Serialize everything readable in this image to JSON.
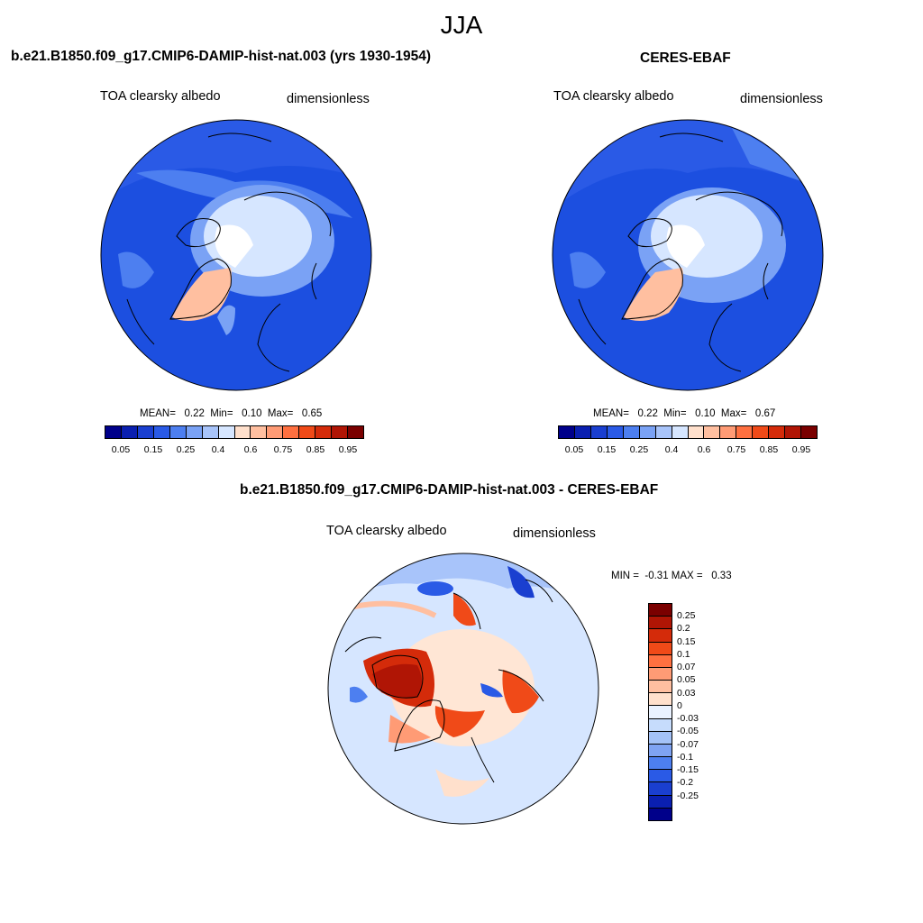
{
  "title": "JJA",
  "panels": [
    {
      "title": "b.e21.B1850.f09_g17.CMIP6-DAMIP-hist-nat.003 (yrs 1930-1954)",
      "left_label": "TOA clearsky albedo",
      "right_label": "dimensionless",
      "stats": "MEAN=   0.22  Min=   0.10  Max=   0.65",
      "mean": 0.22,
      "min": 0.1,
      "max": 0.65
    },
    {
      "title": "CERES-EBAF",
      "left_label": "TOA clearsky albedo",
      "right_label": "dimensionless",
      "stats": "MEAN=   0.22  Min=   0.10  Max=   0.67",
      "mean": 0.22,
      "min": 0.1,
      "max": 0.67
    }
  ],
  "difference": {
    "title": "b.e21.B1850.f09_g17.CMIP6-DAMIP-hist-nat.003 - CERES-EBAF",
    "left_label": "TOA clearsky albedo",
    "right_label": "dimensionless",
    "stats": "MIN =  -0.31 MAX =   0.33",
    "min": -0.31,
    "max": 0.33
  },
  "colorbar": {
    "colors": [
      "#00008a",
      "#0a1fb0",
      "#1a3fd0",
      "#2a5ae6",
      "#4d7ff0",
      "#7aa2f5",
      "#a8c4fa",
      "#d6e6ff",
      "#ffe0cc",
      "#ffbfa0",
      "#ff9b75",
      "#ff7040",
      "#f04a18",
      "#d42b0a",
      "#b01505",
      "#7a0000"
    ],
    "tick_labels": [
      "0.05",
      "0.15",
      "0.25",
      "0.4",
      "0.6",
      "0.75",
      "0.85",
      "0.95"
    ]
  },
  "diff_colorbar": {
    "colors": [
      "#7a0000",
      "#b01505",
      "#d42b0a",
      "#f04a18",
      "#ff7040",
      "#ff9b75",
      "#ffbfa0",
      "#ffe0cc",
      "#eaf2ff",
      "#c6dcfc",
      "#a4c2f7",
      "#7fa3f2",
      "#4d7ff0",
      "#2a5ae6",
      "#1a3fd0",
      "#0a1fb0",
      "#00008a"
    ],
    "tick_labels": [
      "0.25",
      "0.2",
      "0.15",
      "0.1",
      "0.07",
      "0.05",
      "0.03",
      "0",
      "-0.03",
      "-0.05",
      "-0.07",
      "-0.1",
      "-0.15",
      "-0.2",
      "-0.25"
    ]
  }
}
